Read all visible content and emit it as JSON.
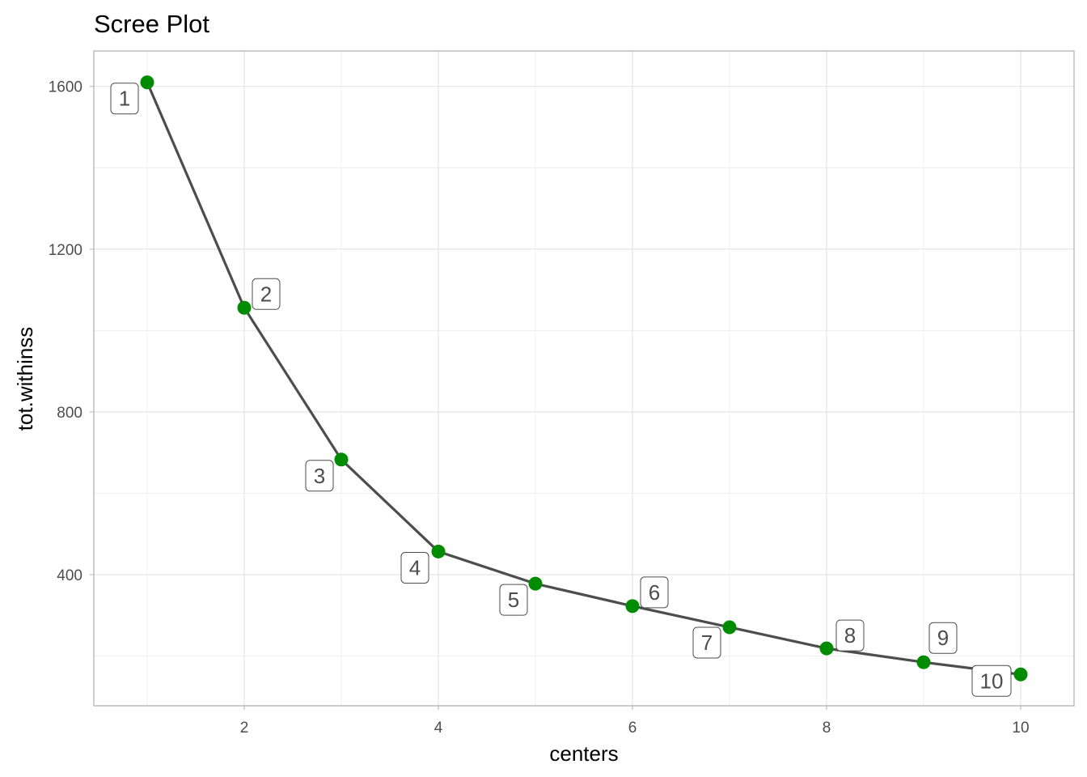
{
  "chart_data": {
    "type": "line",
    "title": "Scree Plot",
    "xlabel": "centers",
    "ylabel": "tot.withinss",
    "x": [
      1,
      2,
      3,
      4,
      5,
      6,
      7,
      8,
      9,
      10
    ],
    "values": [
      1610,
      1056,
      683,
      457,
      378,
      323,
      271,
      219,
      185,
      155
    ],
    "point_labels": [
      "1",
      "2",
      "3",
      "4",
      "5",
      "6",
      "7",
      "8",
      "9",
      "10"
    ],
    "xlim": [
      0.45,
      10.55
    ],
    "ylim": [
      78,
      1687
    ],
    "x_ticks": [
      2,
      4,
      6,
      8,
      10
    ],
    "x_tick_labels": [
      "2",
      "4",
      "6",
      "8",
      "10"
    ],
    "y_ticks": [
      400,
      800,
      1200,
      1600
    ],
    "y_tick_labels": [
      "400",
      "800",
      "1200",
      "1600"
    ],
    "grid": true,
    "line_color": "#4d4d4d",
    "point_color": "#008b00"
  }
}
